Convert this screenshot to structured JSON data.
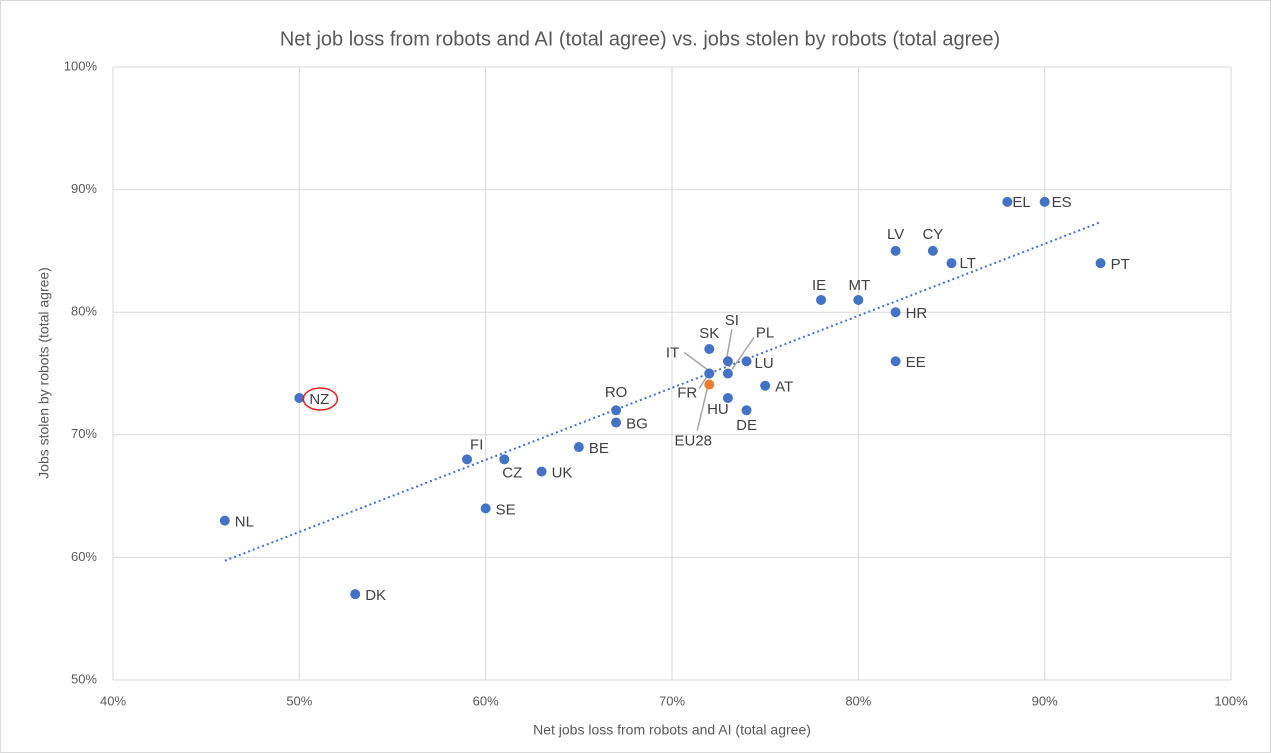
{
  "chart_data": {
    "type": "scatter",
    "title": "Net job loss from robots and AI (total agree) vs. jobs stolen by robots (total agree)",
    "xlabel": "Net jobs loss from robots and AI (total agree)",
    "ylabel": "Jobs stolen by robots (total agree)",
    "point_labels": [
      "NZ",
      "NL",
      "DK",
      "FI",
      "CZ",
      "SE",
      "UK",
      "BE",
      "RO",
      "BG",
      "SK",
      "IT",
      "FR",
      "EU28",
      "SI",
      "PL",
      "LU",
      "HU",
      "DE",
      "AT",
      "IE",
      "MT",
      "LV",
      "CY",
      "LT",
      "HR",
      "EE",
      "EL",
      "ES",
      "PT"
    ],
    "x": [
      50,
      46,
      53,
      59,
      61,
      60,
      63,
      65,
      67,
      67,
      72,
      72,
      72,
      72,
      73,
      73,
      74,
      73,
      74,
      75,
      78,
      80,
      82,
      84,
      85,
      82,
      82,
      88,
      90,
      93
    ],
    "values": [
      73,
      63,
      57,
      68,
      68,
      64,
      67,
      69,
      72,
      71,
      77,
      75,
      75,
      74.1,
      76,
      75,
      76,
      73,
      72,
      74,
      81,
      81,
      85,
      85,
      84,
      80,
      76,
      89,
      89,
      84
    ],
    "colors": [
      "#4472c4",
      "#4472c4",
      "#4472c4",
      "#4472c4",
      "#4472c4",
      "#4472c4",
      "#4472c4",
      "#4472c4",
      "#4472c4",
      "#4472c4",
      "#4472c4",
      "#4472c4",
      "#4472c4",
      "#ed7d31",
      "#4472c4",
      "#4472c4",
      "#4472c4",
      "#4472c4",
      "#4472c4",
      "#4472c4",
      "#4472c4",
      "#4472c4",
      "#4472c4",
      "#4472c4",
      "#4472c4",
      "#4472c4",
      "#4472c4",
      "#4472c4",
      "#4472c4",
      "#4472c4"
    ],
    "trendline": true,
    "trendline_color": "#4472c4",
    "grid": true,
    "xlim": [
      40,
      100
    ],
    "ylim": [
      50,
      100
    ],
    "xticks": [
      {
        "value": 40,
        "label": "40%"
      },
      {
        "value": 50,
        "label": "50%"
      },
      {
        "value": 60,
        "label": "60%"
      },
      {
        "value": 70,
        "label": "70%"
      },
      {
        "value": 80,
        "label": "80%"
      },
      {
        "value": 90,
        "label": "90%"
      },
      {
        "value": 100,
        "label": "100%"
      }
    ],
    "yticks": [
      {
        "value": 50,
        "label": "50%"
      },
      {
        "value": 60,
        "label": "60%"
      },
      {
        "value": 70,
        "label": "70%"
      },
      {
        "value": 80,
        "label": "80%"
      },
      {
        "value": 90,
        "label": "90%"
      },
      {
        "value": 100,
        "label": "100%"
      }
    ]
  }
}
